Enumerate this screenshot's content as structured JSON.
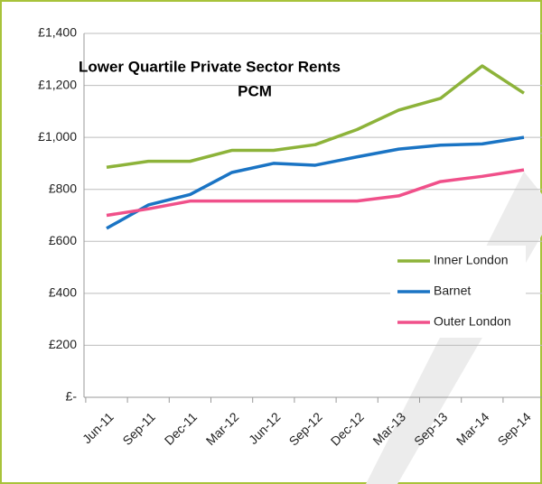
{
  "chart_data": {
    "type": "line",
    "title": [
      "Lower Quartile Private Sector Rents",
      "PCM"
    ],
    "categories": [
      "Jun-11",
      "Sep-11",
      "Dec-11",
      "Mar-12",
      "Jun-12",
      "Sep-12",
      "Dec-12",
      "Mar-13",
      "Sep-13",
      "Mar-14",
      "Sep-14"
    ],
    "series": [
      {
        "name": "Inner London",
        "color": "#8db33a",
        "values": [
          885,
          908,
          908,
          950,
          950,
          972,
          1030,
          1105,
          1150,
          1275,
          1170
        ]
      },
      {
        "name": "Barnet",
        "color": "#1a74c4",
        "values": [
          650,
          740,
          780,
          865,
          900,
          893,
          925,
          955,
          970,
          975,
          1000
        ]
      },
      {
        "name": "Outer London",
        "color": "#f0508a",
        "values": [
          700,
          725,
          755,
          755,
          755,
          755,
          755,
          775,
          830,
          850,
          875
        ]
      }
    ],
    "ylim": [
      0,
      1400
    ],
    "yticks": [
      {
        "value": 0,
        "label": "£-"
      },
      {
        "value": 200,
        "label": "£200"
      },
      {
        "value": 400,
        "label": "£400"
      },
      {
        "value": 600,
        "label": "£600"
      },
      {
        "value": 800,
        "label": "£800"
      },
      {
        "value": 1000,
        "label": "£1,000"
      },
      {
        "value": 1200,
        "label": "£1,200"
      },
      {
        "value": 1400,
        "label": "£1,400"
      }
    ],
    "grid": true,
    "legend": "right"
  }
}
